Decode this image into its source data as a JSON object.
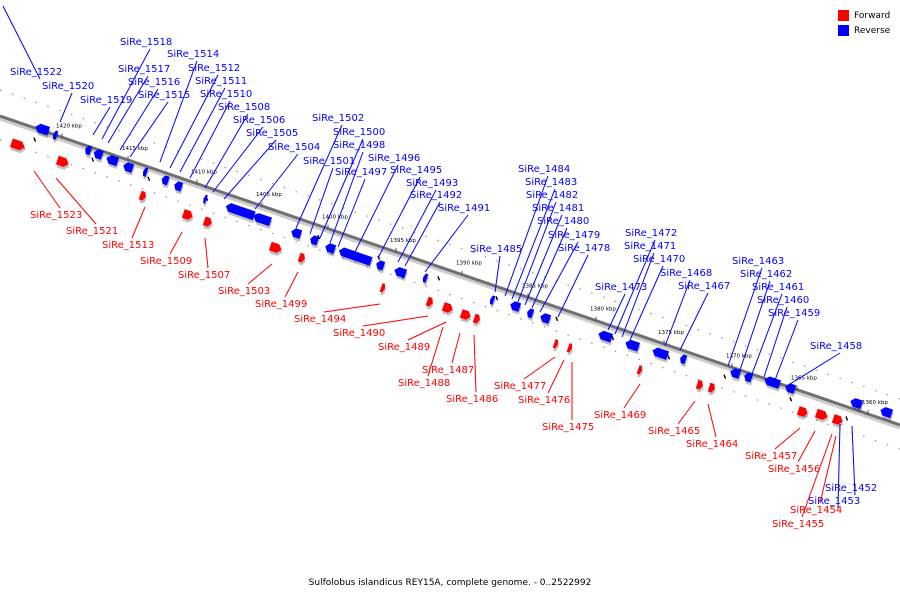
{
  "colors": {
    "forward": "#ff0000",
    "reverse": "#0000ff",
    "track": "#888888"
  },
  "legend": {
    "forward": "Forward",
    "reverse": "Reverse"
  },
  "caption": "Sulfolobus islandicus REY15A, complete genome. - 0..2522992",
  "scale_labels": [
    "1420 kbp",
    "1415 kbp",
    "1410 kbp",
    "1405 kbp",
    "1400 kbp",
    "1395 kbp",
    "1390 kbp",
    "1385 kbp",
    "1380 kbp",
    "1375 kbp",
    "1370 kbp",
    "1365 kbp",
    "1360 kbp"
  ],
  "reverse_genes": [
    "SiRe_1522",
    "SiRe_1520",
    "SiRe_1519",
    "SiRe_1518",
    "SiRe_1517",
    "SiRe_1516",
    "SiRe_1515",
    "SiRe_1514",
    "SiRe_1512",
    "SiRe_1511",
    "SiRe_1510",
    "SiRe_1508",
    "SiRe_1506",
    "SiRe_1505",
    "SiRe_1504",
    "SiRe_1502",
    "SiRe_1501",
    "SiRe_1500",
    "SiRe_1498",
    "SiRe_1497",
    "SiRe_1496",
    "SiRe_1495",
    "SiRe_1493",
    "SiRe_1492",
    "SiRe_1491",
    "SiRe_1485",
    "SiRe_1484",
    "SiRe_1483",
    "SiRe_1482",
    "SiRe_1481",
    "SiRe_1480",
    "SiRe_1479",
    "SiRe_1478",
    "SiRe_1473",
    "SiRe_1472",
    "SiRe_1471",
    "SiRe_1470",
    "SiRe_1468",
    "SiRe_1467",
    "SiRe_1463",
    "SiRe_1462",
    "SiRe_1461",
    "SiRe_1460",
    "SiRe_1459",
    "SiRe_1458",
    "SiRe_1453",
    "SiRe_1452"
  ],
  "forward_genes": [
    "SiRe_1523",
    "SiRe_1521",
    "SiRe_1513",
    "SiRe_1509",
    "SiRe_1507",
    "SiRe_1503",
    "SiRe_1499",
    "SiRe_1494",
    "SiRe_1490",
    "SiRe_1489",
    "SiRe_1488",
    "SiRe_1487",
    "SiRe_1486",
    "SiRe_1477",
    "SiRe_1476",
    "SiRe_1475",
    "SiRe_1469",
    "SiRe_1465",
    "SiRe_1464",
    "SiRe_1457",
    "SiRe_1456",
    "SiRe_1455",
    "SiRe_1454"
  ]
}
